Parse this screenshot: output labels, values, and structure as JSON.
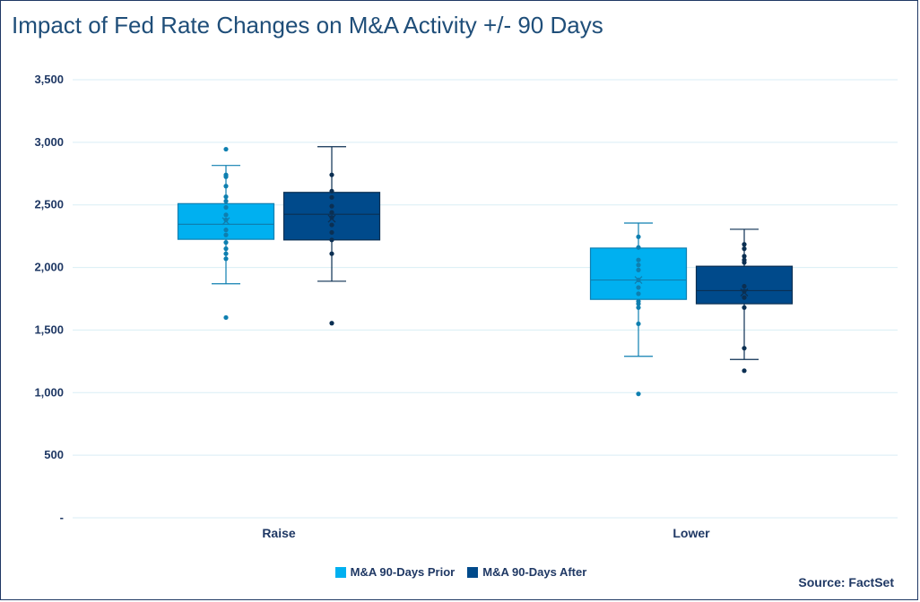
{
  "chart_data": {
    "type": "box",
    "title": "Impact of Fed Rate Changes on M&A Activity +/- 90 Days",
    "categories": [
      "Raise",
      "Lower"
    ],
    "ylim": [
      0,
      3500
    ],
    "yticks": [
      {
        "value": 0,
        "label": "-"
      },
      {
        "value": 500,
        "label": "500"
      },
      {
        "value": 1000,
        "label": "1,000"
      },
      {
        "value": 1500,
        "label": "1,500"
      },
      {
        "value": 2000,
        "label": "2,000"
      },
      {
        "value": 2500,
        "label": "2,500"
      },
      {
        "value": 3000,
        "label": "3,000"
      },
      {
        "value": 3500,
        "label": "3,500"
      }
    ],
    "grid": true,
    "legend_position": "bottom",
    "series": [
      {
        "name": "M&A 90-Days Prior",
        "color": "#00b0f0",
        "stroke": "#0e7fb0",
        "boxes": [
          {
            "category": "Raise",
            "min": 1870,
            "q1": 2225,
            "median": 2345,
            "q3": 2510,
            "max": 2815,
            "mean": 2370,
            "points": [
              2945,
              2740,
              2725,
              2650,
              2565,
              2530,
              2480,
              2420,
              2380,
              2300,
              2260,
              2200,
              2150,
              2110,
              2070,
              1600
            ]
          },
          {
            "category": "Lower",
            "min": 1290,
            "q1": 1745,
            "median": 1900,
            "q3": 2155,
            "max": 2355,
            "mean": 1900,
            "points": [
              2245,
              2160,
              2060,
              2020,
              1980,
              1900,
              1840,
              1790,
              1730,
              1710,
              1680,
              1550,
              990
            ]
          }
        ]
      },
      {
        "name": "M&A 90-Days After",
        "color": "#004a8b",
        "stroke": "#0b2f52",
        "boxes": [
          {
            "category": "Raise",
            "min": 1890,
            "q1": 2220,
            "median": 2425,
            "q3": 2600,
            "max": 2965,
            "mean": 2390,
            "points": [
              2740,
              2610,
              2560,
              2490,
              2440,
              2400,
              2340,
              2280,
              2220,
              2110,
              1555
            ]
          },
          {
            "category": "Lower",
            "min": 1265,
            "q1": 1710,
            "median": 1815,
            "q3": 2010,
            "max": 2305,
            "mean": 1800,
            "points": [
              2185,
              2150,
              2090,
              2060,
              2040,
              1850,
              1810,
              1760,
              1680,
              1355,
              1175
            ]
          }
        ]
      }
    ]
  },
  "source": "Source: FactSet"
}
